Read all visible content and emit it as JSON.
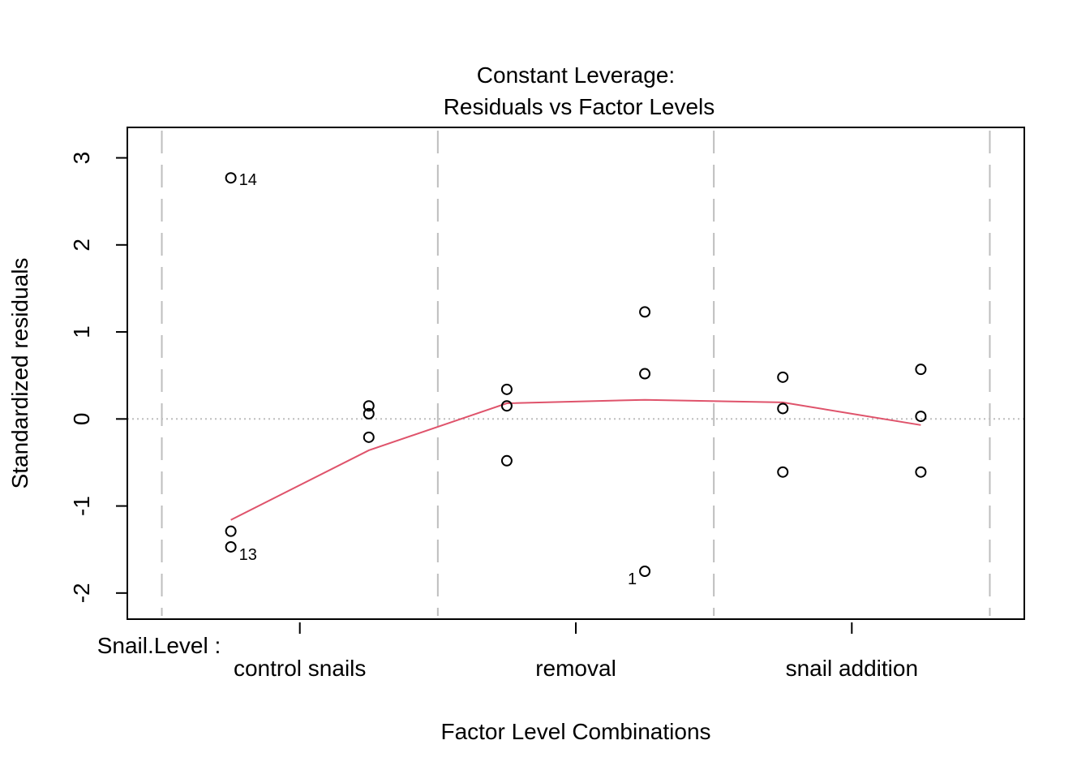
{
  "chart_data": {
    "type": "scatter",
    "title_line1": "Constant Leverage:",
    "title_line2": "Residuals vs Factor Levels",
    "xlabel": "Factor Level Combinations",
    "ylabel": "Standardized residuals",
    "factor_label": "Snail.Level :",
    "categories": [
      "control snails",
      "removal",
      "snail addition"
    ],
    "ylim": [
      -2.3,
      3.35
    ],
    "yticks": [
      -2,
      -1,
      0,
      1,
      2,
      3
    ],
    "ytick_labels": [
      "-2",
      "-1",
      "0",
      "1",
      "2",
      "3"
    ],
    "grid": false,
    "points": [
      {
        "x": 1,
        "y": 2.77,
        "label": "14"
      },
      {
        "x": 1,
        "y": -1.29
      },
      {
        "x": 1,
        "y": -1.47,
        "label": "13"
      },
      {
        "x": 2,
        "y": 0.15
      },
      {
        "x": 2,
        "y": 0.06
      },
      {
        "x": 2,
        "y": -0.21
      },
      {
        "x": 3,
        "y": 0.34
      },
      {
        "x": 3,
        "y": 0.15
      },
      {
        "x": 3,
        "y": -0.48
      },
      {
        "x": 4,
        "y": 1.23
      },
      {
        "x": 4,
        "y": 0.52
      },
      {
        "x": 4,
        "y": -1.75,
        "label": "1"
      },
      {
        "x": 5,
        "y": 0.48
      },
      {
        "x": 5,
        "y": 0.12
      },
      {
        "x": 5,
        "y": -0.61
      },
      {
        "x": 6,
        "y": 0.57
      },
      {
        "x": 6,
        "y": 0.03
      },
      {
        "x": 6,
        "y": -0.61
      }
    ],
    "smooth_line": {
      "color": "#DF536B",
      "x": [
        1,
        2,
        3,
        4,
        5,
        6
      ],
      "y": [
        -1.16,
        -0.36,
        0.18,
        0.22,
        0.19,
        -0.07
      ]
    },
    "reference_line_y": 0,
    "group_separators_x": [
      0.5,
      2.5,
      4.5,
      6.5
    ],
    "category_tick_x": [
      1.5,
      3.5,
      5.5
    ],
    "colors": {
      "points": "#000000",
      "smooth": "#DF536B",
      "separators": "#BEBEBE",
      "reference": "#BEBEBE"
    }
  }
}
